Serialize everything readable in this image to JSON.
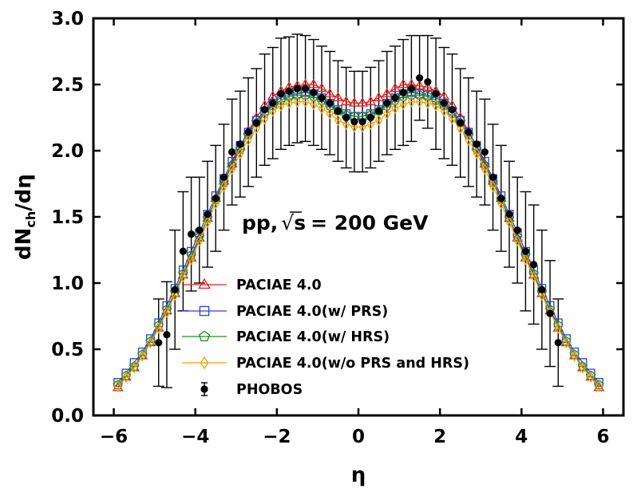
{
  "chart_data": {
    "type": "line",
    "xlabel": "η",
    "ylabel_main": "dN",
    "ylabel_sub": "ch",
    "ylabel_tail": "/dη",
    "xlim": [
      -6.5,
      6.5
    ],
    "ylim": [
      0.0,
      3.0
    ],
    "xticks": [
      -6,
      -4,
      -2,
      0,
      2,
      4,
      6
    ],
    "xtick_labels": [
      "−6",
      "−4",
      "−2",
      "0",
      "2",
      "4",
      "6"
    ],
    "yticks": [
      0.0,
      0.5,
      1.0,
      1.5,
      2.0,
      2.5,
      3.0
    ],
    "ytick_labels": [
      "0.0",
      "0.5",
      "1.0",
      "1.5",
      "2.0",
      "2.5",
      "3.0"
    ],
    "grid": false,
    "legend_position": "lower-center",
    "annotation": {
      "prefix": "pp,",
      "sqrt": "√",
      "s": "s",
      "suffix": "= 200  GeV"
    },
    "x": [
      -5.9,
      -5.7,
      -5.5,
      -5.3,
      -5.1,
      -4.9,
      -4.7,
      -4.5,
      -4.3,
      -4.1,
      -3.9,
      -3.7,
      -3.5,
      -3.3,
      -3.1,
      -2.9,
      -2.7,
      -2.5,
      -2.3,
      -2.1,
      -1.9,
      -1.7,
      -1.5,
      -1.3,
      -1.1,
      -0.9,
      -0.7,
      -0.5,
      -0.3,
      -0.1,
      0.1,
      0.3,
      0.5,
      0.7,
      0.9,
      1.1,
      1.3,
      1.5,
      1.7,
      1.9,
      2.1,
      2.3,
      2.5,
      2.7,
      2.9,
      3.1,
      3.3,
      3.5,
      3.7,
      3.9,
      4.1,
      4.3,
      4.5,
      4.7,
      4.9,
      5.1,
      5.3,
      5.5,
      5.7,
      5.9
    ],
    "series": [
      {
        "name": "PACIAE 4.0",
        "color": "#ee1c1c",
        "marker": "triangle",
        "values": [
          0.21,
          0.29,
          0.36,
          0.45,
          0.55,
          0.66,
          0.79,
          0.92,
          1.06,
          1.19,
          1.34,
          1.49,
          1.64,
          1.77,
          1.9,
          2.03,
          2.15,
          2.25,
          2.34,
          2.41,
          2.45,
          2.48,
          2.49,
          2.5,
          2.5,
          2.47,
          2.43,
          2.4,
          2.37,
          2.36,
          2.36,
          2.37,
          2.4,
          2.43,
          2.47,
          2.5,
          2.5,
          2.49,
          2.48,
          2.45,
          2.41,
          2.34,
          2.25,
          2.15,
          2.03,
          1.9,
          1.77,
          1.64,
          1.49,
          1.34,
          1.19,
          1.06,
          0.92,
          0.79,
          0.66,
          0.55,
          0.45,
          0.36,
          0.29,
          0.21
        ]
      },
      {
        "name": "PACIAE 4.0(w/ PRS)",
        "color": "#2a3fe0",
        "marker": "square",
        "values": [
          0.25,
          0.32,
          0.4,
          0.48,
          0.58,
          0.7,
          0.83,
          0.96,
          1.1,
          1.24,
          1.38,
          1.52,
          1.66,
          1.79,
          1.92,
          2.04,
          2.14,
          2.23,
          2.3,
          2.36,
          2.4,
          2.42,
          2.43,
          2.44,
          2.43,
          2.4,
          2.36,
          2.31,
          2.28,
          2.26,
          2.26,
          2.28,
          2.31,
          2.36,
          2.4,
          2.43,
          2.44,
          2.43,
          2.42,
          2.4,
          2.36,
          2.3,
          2.23,
          2.14,
          2.04,
          1.92,
          1.79,
          1.66,
          1.52,
          1.38,
          1.24,
          1.1,
          0.96,
          0.83,
          0.7,
          0.58,
          0.48,
          0.4,
          0.32,
          0.25
        ]
      },
      {
        "name": "PACIAE 4.0(w/ HRS)",
        "color": "#1e8c1e",
        "marker": "pentagon",
        "values": [
          0.23,
          0.3,
          0.37,
          0.46,
          0.56,
          0.68,
          0.8,
          0.93,
          1.07,
          1.21,
          1.35,
          1.49,
          1.63,
          1.76,
          1.89,
          2.01,
          2.12,
          2.21,
          2.28,
          2.34,
          2.38,
          2.41,
          2.42,
          2.42,
          2.41,
          2.38,
          2.34,
          2.3,
          2.27,
          2.26,
          2.26,
          2.27,
          2.3,
          2.34,
          2.38,
          2.41,
          2.42,
          2.42,
          2.41,
          2.38,
          2.34,
          2.28,
          2.21,
          2.12,
          2.01,
          1.89,
          1.76,
          1.63,
          1.49,
          1.35,
          1.21,
          1.07,
          0.93,
          0.8,
          0.68,
          0.56,
          0.46,
          0.37,
          0.3,
          0.23
        ]
      },
      {
        "name": "PACIAE 4.0(w/o PRS and HRS)",
        "color": "#f5a000",
        "marker": "diamond",
        "values": [
          0.22,
          0.29,
          0.36,
          0.45,
          0.55,
          0.66,
          0.78,
          0.91,
          1.05,
          1.18,
          1.32,
          1.46,
          1.6,
          1.73,
          1.86,
          1.98,
          2.08,
          2.17,
          2.24,
          2.3,
          2.34,
          2.36,
          2.37,
          2.37,
          2.35,
          2.32,
          2.28,
          2.23,
          2.2,
          2.18,
          2.18,
          2.2,
          2.23,
          2.28,
          2.32,
          2.35,
          2.37,
          2.37,
          2.36,
          2.34,
          2.3,
          2.24,
          2.17,
          2.08,
          1.98,
          1.86,
          1.73,
          1.6,
          1.46,
          1.32,
          1.18,
          1.05,
          0.91,
          0.78,
          0.66,
          0.55,
          0.45,
          0.36,
          0.29,
          0.22
        ]
      }
    ],
    "data_series": {
      "name": "PHOBOS",
      "color": "#000000",
      "marker": "circle",
      "x": [
        -4.9,
        -4.7,
        -4.5,
        -4.3,
        -4.1,
        -3.9,
        -3.7,
        -3.5,
        -3.3,
        -3.1,
        -2.9,
        -2.7,
        -2.5,
        -2.3,
        -2.1,
        -1.9,
        -1.7,
        -1.5,
        -1.3,
        -1.1,
        -0.9,
        -0.7,
        -0.5,
        -0.3,
        -0.1,
        0.1,
        0.3,
        0.5,
        0.7,
        0.9,
        1.1,
        1.3,
        1.5,
        1.7,
        1.9,
        2.1,
        2.3,
        2.5,
        2.7,
        2.9,
        3.1,
        3.3,
        3.5,
        3.7,
        3.9,
        4.1,
        4.3,
        4.5,
        4.7,
        4.9
      ],
      "values": [
        0.55,
        0.61,
        0.95,
        1.24,
        1.37,
        1.4,
        1.52,
        1.64,
        1.8,
        1.99,
        2.05,
        2.14,
        2.21,
        2.31,
        2.36,
        2.43,
        2.45,
        2.47,
        2.47,
        2.44,
        2.4,
        2.36,
        2.3,
        2.25,
        2.22,
        2.22,
        2.25,
        2.3,
        2.36,
        2.4,
        2.44,
        2.47,
        2.55,
        2.52,
        2.43,
        2.36,
        2.31,
        2.21,
        2.14,
        2.05,
        1.99,
        1.8,
        1.64,
        1.52,
        1.4,
        1.24,
        1.14,
        0.95,
        0.77,
        0.55
      ],
      "errors": [
        0.33,
        0.4,
        0.45,
        0.45,
        0.43,
        0.4,
        0.4,
        0.4,
        0.4,
        0.4,
        0.4,
        0.41,
        0.41,
        0.42,
        0.42,
        0.42,
        0.41,
        0.41,
        0.4,
        0.4,
        0.39,
        0.39,
        0.38,
        0.38,
        0.38,
        0.38,
        0.38,
        0.38,
        0.39,
        0.39,
        0.4,
        0.4,
        0.32,
        0.35,
        0.42,
        0.42,
        0.42,
        0.41,
        0.41,
        0.4,
        0.4,
        0.4,
        0.4,
        0.4,
        0.4,
        0.45,
        0.45,
        0.45,
        0.4,
        0.33
      ]
    }
  }
}
